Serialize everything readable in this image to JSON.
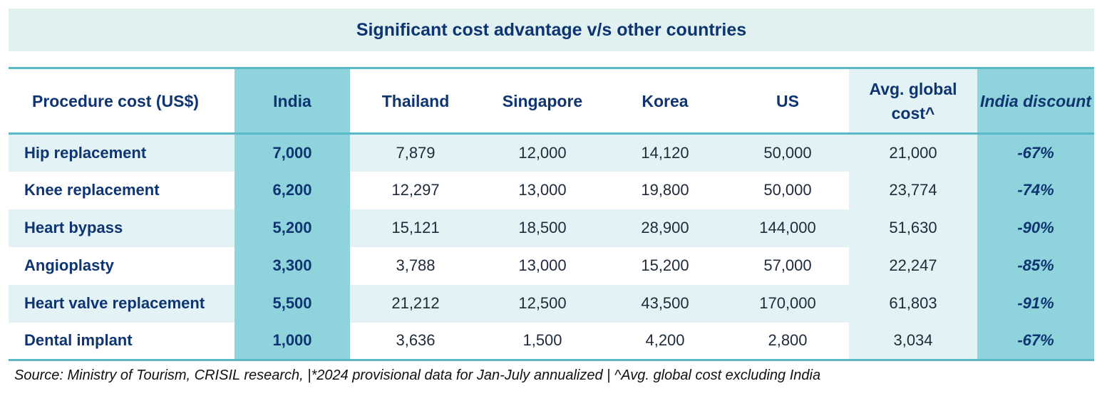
{
  "title": "Significant cost advantage v/s other countries",
  "chart_data": {
    "type": "table",
    "title": "Significant cost advantage v/s other countries",
    "columns": [
      "Procedure cost (US$)",
      "India",
      "Thailand",
      "Singapore",
      "Korea",
      "US",
      "Avg. global cost^",
      "India discount"
    ],
    "rows": [
      [
        "Hip replacement",
        "7,000",
        "7,879",
        "12,000",
        "14,120",
        "50,000",
        "21,000",
        "-67%"
      ],
      [
        "Knee replacement",
        "6,200",
        "12,297",
        "13,000",
        "19,800",
        "50,000",
        "23,774",
        "-74%"
      ],
      [
        "Heart bypass",
        "5,200",
        "15,121",
        "18,500",
        "28,900",
        "144,000",
        "51,630",
        "-90%"
      ],
      [
        "Angioplasty",
        "3,300",
        "3,788",
        "13,000",
        "15,200",
        "57,000",
        "22,247",
        "-85%"
      ],
      [
        "Heart valve replacement",
        "5,500",
        "21,212",
        "12,500",
        "43,500",
        "170,000",
        "61,803",
        "-91%"
      ],
      [
        "Dental implant",
        "1,000",
        "3,636",
        "1,500",
        "4,200",
        "2,800",
        "3,034",
        "-67%"
      ]
    ]
  },
  "footnote": "Source: Ministry of Tourism, CRISIL research, |*2024 provisional data for Jan-July annualized | ^Avg. global cost excluding India",
  "colors": {
    "title_bg": "#e0f1ef",
    "heading_text": "#0e3572",
    "highlight_col": "#8fd3dc",
    "band": "#e3f2f4",
    "rule": "#5ab9c5"
  }
}
